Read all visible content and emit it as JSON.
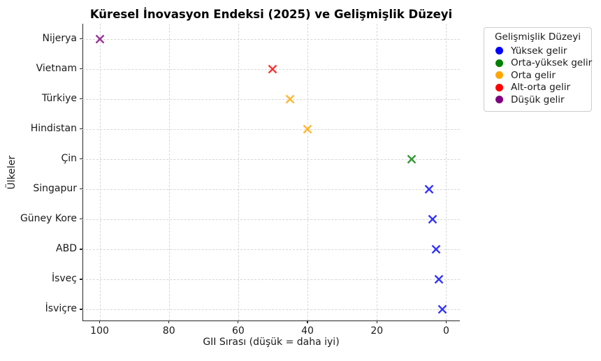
{
  "title": "Küresel İnovasyon Endeksi (2025) ve Gelişmişlik Düzeyi",
  "chart_data": {
    "type": "scatter",
    "title": "Küresel İnovasyon Endeksi (2025) ve Gelişmişlik Düzeyi",
    "xlabel": "GII Sırası (düşük = daha iyi)",
    "ylabel": "Ülkeler",
    "marker": "x",
    "grid": true,
    "x_axis_reversed": true,
    "xlim": [
      104.95,
      -3.95
    ],
    "x_ticks": [
      100,
      80,
      60,
      40,
      20,
      0
    ],
    "x_tick_labels": [
      "100",
      "80",
      "60",
      "40",
      "20",
      "0"
    ],
    "categories": [
      "Nijerya",
      "Vietnam",
      "Türkiye",
      "Hindistan",
      "Çin",
      "Singapur",
      "Güney Kore",
      "ABD",
      "İsveç",
      "İsviçre"
    ],
    "points": [
      {
        "country": "Nijerya",
        "gii_rank": 100,
        "income_group": "Düşük gelir",
        "color": "#800080"
      },
      {
        "country": "Vietnam",
        "gii_rank": 50,
        "income_group": "Alt-orta gelir",
        "color": "#ff0000"
      },
      {
        "country": "Türkiye",
        "gii_rank": 45,
        "income_group": "Orta gelir",
        "color": "#ffa500"
      },
      {
        "country": "Hindistan",
        "gii_rank": 40,
        "income_group": "Orta gelir",
        "color": "#ffa500"
      },
      {
        "country": "Çin",
        "gii_rank": 10,
        "income_group": "Orta-yüksek gelir",
        "color": "#008000"
      },
      {
        "country": "Singapur",
        "gii_rank": 5,
        "income_group": "Yüksek gelir",
        "color": "#0000ff"
      },
      {
        "country": "Güney Kore",
        "gii_rank": 4,
        "income_group": "Yüksek gelir",
        "color": "#0000ff"
      },
      {
        "country": "ABD",
        "gii_rank": 3,
        "income_group": "Yüksek gelir",
        "color": "#0000ff"
      },
      {
        "country": "İsveç",
        "gii_rank": 2,
        "income_group": "Yüksek gelir",
        "color": "#0000ff"
      },
      {
        "country": "İsviçre",
        "gii_rank": 1,
        "income_group": "Yüksek gelir",
        "color": "#0000ff"
      }
    ],
    "legend": {
      "title": "Gelişmişlik Düzeyi",
      "position": "outside upper right",
      "items": [
        {
          "label": "Yüksek gelir",
          "color": "#0000ff"
        },
        {
          "label": "Orta-yüksek gelir",
          "color": "#008000"
        },
        {
          "label": "Orta gelir",
          "color": "#ffa500"
        },
        {
          "label": "Alt-orta gelir",
          "color": "#ff0000"
        },
        {
          "label": "Düşük gelir",
          "color": "#800080"
        }
      ]
    },
    "grid_color": "#d6d6d6",
    "spine_color": "#262626",
    "marker_opacity": 0.8
  }
}
